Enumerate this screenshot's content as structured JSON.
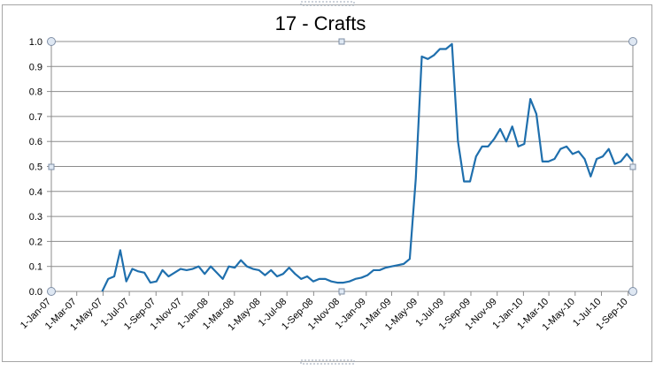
{
  "chart_data": {
    "type": "line",
    "title": "17 - Crafts",
    "color": "#1f6fad",
    "grid": true,
    "xlim": [
      "2007-01-01",
      "2010-09-12"
    ],
    "xticks": [
      {
        "value": "2007-01-01",
        "label": "1-Jan-07"
      },
      {
        "value": "2007-03-01",
        "label": "1-Mar-07"
      },
      {
        "value": "2007-05-01",
        "label": "1-May-07"
      },
      {
        "value": "2007-07-01",
        "label": "1-Jul-07"
      },
      {
        "value": "2007-09-01",
        "label": "1-Sep-07"
      },
      {
        "value": "2007-11-01",
        "label": "1-Nov-07"
      },
      {
        "value": "2008-01-01",
        "label": "1-Jan-08"
      },
      {
        "value": "2008-03-01",
        "label": "1-Mar-08"
      },
      {
        "value": "2008-05-01",
        "label": "1-May-08"
      },
      {
        "value": "2008-07-01",
        "label": "1-Jul-08"
      },
      {
        "value": "2008-09-01",
        "label": "1-Sep-08"
      },
      {
        "value": "2008-11-01",
        "label": "1-Nov-08"
      },
      {
        "value": "2009-01-01",
        "label": "1-Jan-09"
      },
      {
        "value": "2009-03-01",
        "label": "1-Mar-09"
      },
      {
        "value": "2009-05-01",
        "label": "1-May-09"
      },
      {
        "value": "2009-07-01",
        "label": "1-Jul-09"
      },
      {
        "value": "2009-09-01",
        "label": "1-Sep-09"
      },
      {
        "value": "2009-11-01",
        "label": "1-Nov-09"
      },
      {
        "value": "2010-01-01",
        "label": "1-Jan-10"
      },
      {
        "value": "2010-03-01",
        "label": "1-Mar-10"
      },
      {
        "value": "2010-05-01",
        "label": "1-May-10"
      },
      {
        "value": "2010-07-01",
        "label": "1-Jul-10"
      },
      {
        "value": "2010-09-01",
        "label": "1-Sep-10"
      }
    ],
    "ylim": [
      0,
      1
    ],
    "yticks": [
      {
        "value": 0,
        "label": "0.0"
      },
      {
        "value": 0.1,
        "label": "0.1"
      },
      {
        "value": 0.2,
        "label": "0.2"
      },
      {
        "value": 0.3,
        "label": "0.3"
      },
      {
        "value": 0.4,
        "label": "0.4"
      },
      {
        "value": 0.5,
        "label": "0.5"
      },
      {
        "value": 0.6,
        "label": "0.6"
      },
      {
        "value": 0.7,
        "label": "0.7"
      },
      {
        "value": 0.8,
        "label": "0.8"
      },
      {
        "value": 0.9,
        "label": "0.9"
      },
      {
        "value": 1,
        "label": "1.0"
      }
    ],
    "x": [
      "2007-04-29",
      "2007-05-13",
      "2007-05-27",
      "2007-06-10",
      "2007-06-24",
      "2007-07-08",
      "2007-07-22",
      "2007-08-05",
      "2007-08-19",
      "2007-09-02",
      "2007-09-16",
      "2007-09-30",
      "2007-10-14",
      "2007-10-28",
      "2007-11-11",
      "2007-11-25",
      "2007-12-09",
      "2007-12-23",
      "2008-01-06",
      "2008-01-20",
      "2008-02-03",
      "2008-02-17",
      "2008-03-02",
      "2008-03-16",
      "2008-03-30",
      "2008-04-13",
      "2008-04-27",
      "2008-05-11",
      "2008-05-25",
      "2008-06-08",
      "2008-06-22",
      "2008-07-06",
      "2008-07-20",
      "2008-08-03",
      "2008-08-17",
      "2008-08-31",
      "2008-09-14",
      "2008-09-28",
      "2008-10-12",
      "2008-10-26",
      "2008-11-09",
      "2008-11-23",
      "2008-12-07",
      "2008-12-21",
      "2009-01-04",
      "2009-01-18",
      "2009-02-01",
      "2009-02-15",
      "2009-03-01",
      "2009-03-15",
      "2009-03-29",
      "2009-04-12",
      "2009-04-26",
      "2009-05-10",
      "2009-05-24",
      "2009-06-07",
      "2009-06-21",
      "2009-07-05",
      "2009-07-19",
      "2009-08-02",
      "2009-08-16",
      "2009-08-30",
      "2009-09-13",
      "2009-09-27",
      "2009-10-11",
      "2009-10-25",
      "2009-11-08",
      "2009-11-22",
      "2009-12-06",
      "2009-12-20",
      "2010-01-03",
      "2010-01-17",
      "2010-01-31",
      "2010-02-14",
      "2010-02-28",
      "2010-03-14",
      "2010-03-28",
      "2010-04-11",
      "2010-04-25",
      "2010-05-09",
      "2010-05-23",
      "2010-06-06",
      "2010-06-20",
      "2010-07-04",
      "2010-07-18",
      "2010-08-01",
      "2010-08-15",
      "2010-08-29",
      "2010-09-12"
    ],
    "values": [
      0,
      0.05,
      0.06,
      0.165,
      0.04,
      0.09,
      0.08,
      0.075,
      0.035,
      0.04,
      0.085,
      0.06,
      0.075,
      0.09,
      0.085,
      0.09,
      0.1,
      0.07,
      0.1,
      0.075,
      0.05,
      0.1,
      0.095,
      0.125,
      0.1,
      0.09,
      0.085,
      0.065,
      0.085,
      0.06,
      0.07,
      0.095,
      0.07,
      0.05,
      0.06,
      0.04,
      0.05,
      0.05,
      0.04,
      0.035,
      0.035,
      0.04,
      0.05,
      0.055,
      0.065,
      0.085,
      0.085,
      0.095,
      0.1,
      0.105,
      0.11,
      0.13,
      0.45,
      0.94,
      0.93,
      0.945,
      0.97,
      0.97,
      0.99,
      0.6,
      0.44,
      0.44,
      0.54,
      0.58,
      0.58,
      0.61,
      0.65,
      0.6,
      0.66,
      0.58,
      0.59,
      0.77,
      0.71,
      0.52,
      0.52,
      0.53,
      0.57,
      0.58,
      0.55,
      0.56,
      0.53,
      0.46,
      0.53,
      0.54,
      0.57,
      0.51,
      0.52,
      0.55,
      0.52
    ]
  }
}
